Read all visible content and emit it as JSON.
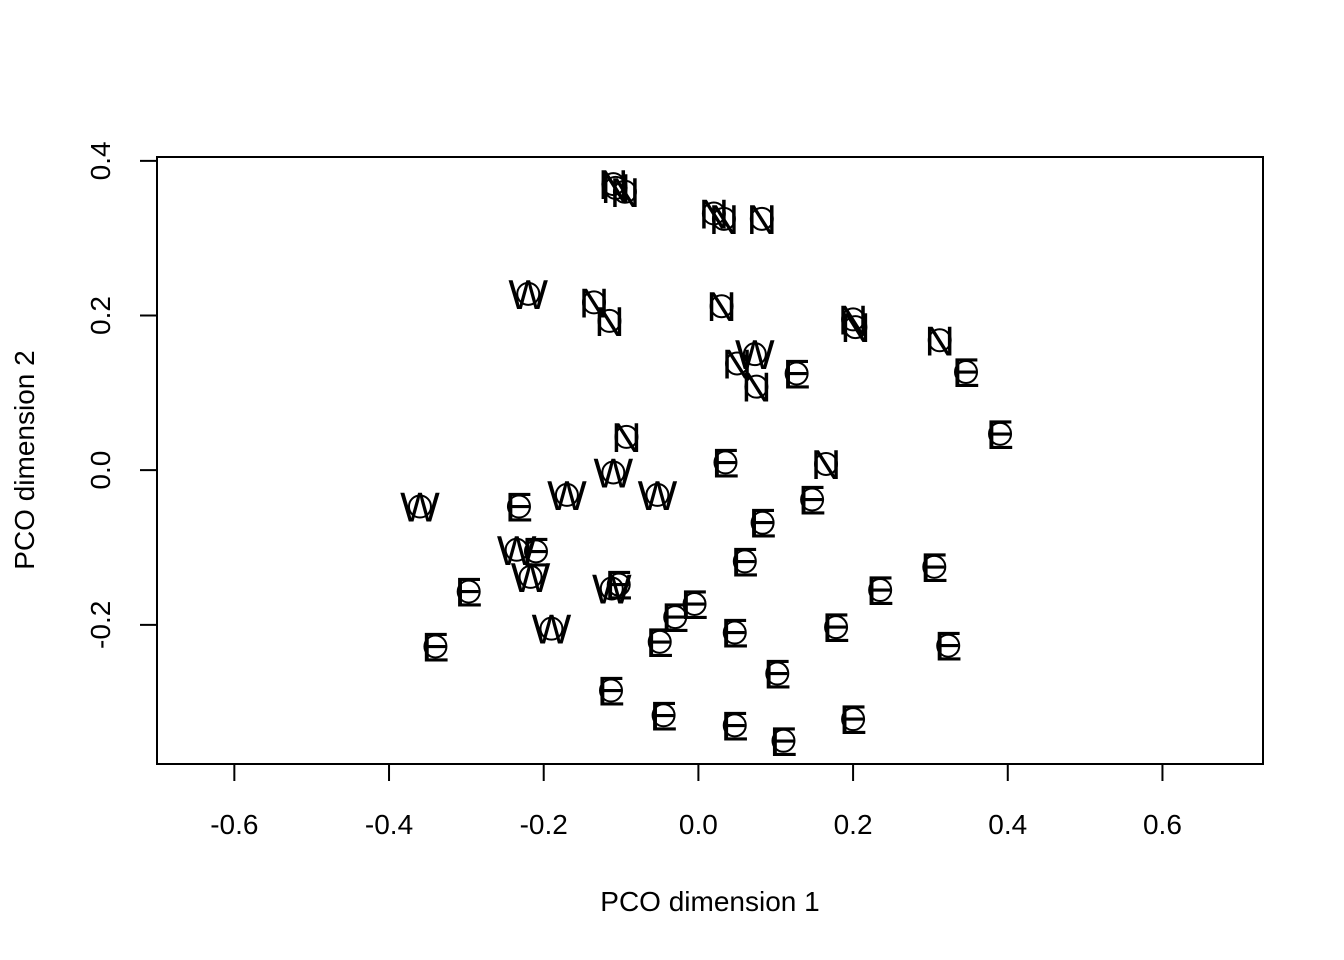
{
  "chart_data": {
    "type": "scatter",
    "title": "",
    "xlabel": "PCO dimension 1",
    "ylabel": "PCO dimension 2",
    "xlim": [
      -0.7,
      0.73
    ],
    "ylim": [
      -0.38,
      0.405
    ],
    "x_ticks": [
      -0.6,
      -0.4,
      -0.2,
      0.0,
      0.2,
      0.4,
      0.6
    ],
    "x_tick_labels": [
      "-0.6",
      "-0.4",
      "-0.2",
      "0.0",
      "0.2",
      "0.4",
      "0.6"
    ],
    "y_ticks": [
      -0.2,
      0.0,
      0.2,
      0.4
    ],
    "y_tick_labels": [
      "-0.2",
      "0.0",
      "0.2",
      "0.4"
    ],
    "marker": "open circle with group letter",
    "points": [
      {
        "x": -0.11,
        "y": 0.37,
        "label": "N"
      },
      {
        "x": -0.107,
        "y": 0.365,
        "label": "N"
      },
      {
        "x": -0.095,
        "y": 0.36,
        "label": "N"
      },
      {
        "x": 0.02,
        "y": 0.332,
        "label": "N"
      },
      {
        "x": 0.033,
        "y": 0.325,
        "label": "N"
      },
      {
        "x": 0.082,
        "y": 0.325,
        "label": "N"
      },
      {
        "x": -0.22,
        "y": 0.228,
        "label": "W"
      },
      {
        "x": -0.135,
        "y": 0.217,
        "label": "N"
      },
      {
        "x": -0.115,
        "y": 0.193,
        "label": "N"
      },
      {
        "x": 0.03,
        "y": 0.212,
        "label": "N"
      },
      {
        "x": 0.2,
        "y": 0.195,
        "label": "N"
      },
      {
        "x": 0.203,
        "y": 0.185,
        "label": "N"
      },
      {
        "x": 0.312,
        "y": 0.168,
        "label": "N"
      },
      {
        "x": 0.05,
        "y": 0.138,
        "label": "N"
      },
      {
        "x": 0.073,
        "y": 0.15,
        "label": "W"
      },
      {
        "x": 0.075,
        "y": 0.108,
        "label": "N"
      },
      {
        "x": 0.127,
        "y": 0.125,
        "label": "E"
      },
      {
        "x": 0.346,
        "y": 0.127,
        "label": "E"
      },
      {
        "x": 0.39,
        "y": 0.047,
        "label": "E"
      },
      {
        "x": -0.093,
        "y": 0.043,
        "label": "N"
      },
      {
        "x": -0.11,
        "y": -0.003,
        "label": "W"
      },
      {
        "x": 0.035,
        "y": 0.01,
        "label": "E"
      },
      {
        "x": 0.165,
        "y": 0.008,
        "label": "N"
      },
      {
        "x": -0.36,
        "y": -0.047,
        "label": "W"
      },
      {
        "x": -0.17,
        "y": -0.032,
        "label": "W"
      },
      {
        "x": -0.053,
        "y": -0.032,
        "label": "W"
      },
      {
        "x": -0.232,
        "y": -0.047,
        "label": "E"
      },
      {
        "x": 0.147,
        "y": -0.038,
        "label": "E"
      },
      {
        "x": 0.083,
        "y": -0.068,
        "label": "E"
      },
      {
        "x": -0.235,
        "y": -0.103,
        "label": "W"
      },
      {
        "x": -0.21,
        "y": -0.105,
        "label": "E"
      },
      {
        "x": -0.217,
        "y": -0.138,
        "label": "W"
      },
      {
        "x": 0.06,
        "y": -0.118,
        "label": "E"
      },
      {
        "x": 0.305,
        "y": -0.125,
        "label": "E"
      },
      {
        "x": -0.297,
        "y": -0.157,
        "label": "E"
      },
      {
        "x": -0.112,
        "y": -0.153,
        "label": "W"
      },
      {
        "x": -0.103,
        "y": -0.148,
        "label": "E"
      },
      {
        "x": 0.235,
        "y": -0.155,
        "label": "E"
      },
      {
        "x": -0.005,
        "y": -0.173,
        "label": "E"
      },
      {
        "x": -0.03,
        "y": -0.19,
        "label": "E"
      },
      {
        "x": -0.19,
        "y": -0.205,
        "label": "W"
      },
      {
        "x": 0.047,
        "y": -0.21,
        "label": "E"
      },
      {
        "x": 0.178,
        "y": -0.203,
        "label": "E"
      },
      {
        "x": -0.05,
        "y": -0.222,
        "label": "E"
      },
      {
        "x": -0.34,
        "y": -0.228,
        "label": "E"
      },
      {
        "x": 0.323,
        "y": -0.227,
        "label": "E"
      },
      {
        "x": 0.102,
        "y": -0.263,
        "label": "E"
      },
      {
        "x": -0.113,
        "y": -0.285,
        "label": "E"
      },
      {
        "x": -0.045,
        "y": -0.317,
        "label": "E"
      },
      {
        "x": 0.047,
        "y": -0.33,
        "label": "E"
      },
      {
        "x": 0.2,
        "y": -0.322,
        "label": "E"
      },
      {
        "x": 0.11,
        "y": -0.35,
        "label": "E"
      }
    ]
  }
}
